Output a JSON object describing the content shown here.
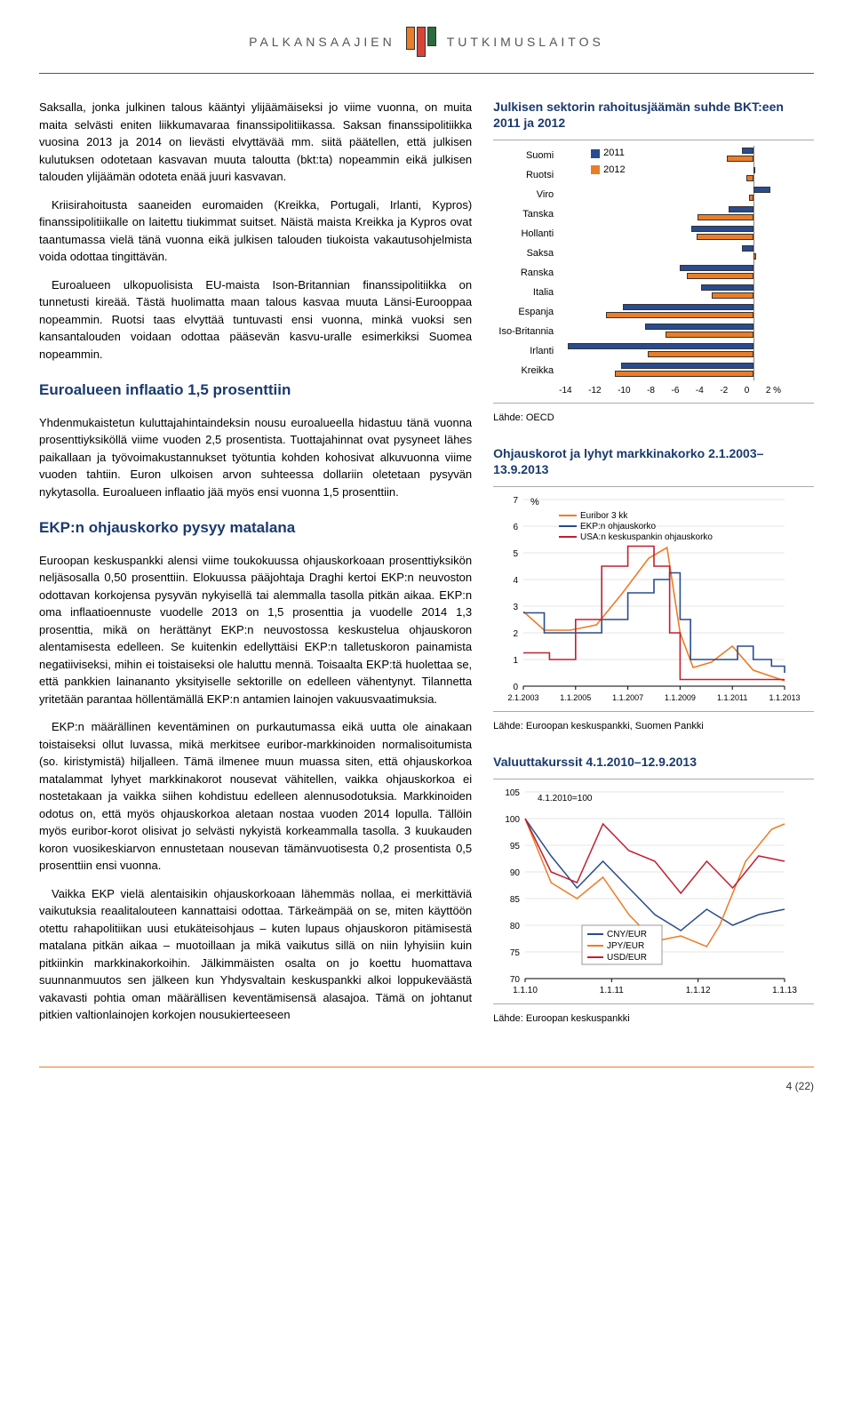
{
  "header": {
    "left": "PALKANSAAJIEN",
    "right": "TUTKIMUSLAITOS",
    "logo_colors": [
      "#ec7c26",
      "#d9443a",
      "#2a6b3f"
    ]
  },
  "body": {
    "p1": "Saksalla, jonka julkinen talous kääntyi ylijäämäiseksi jo viime vuonna, on muita maita selvästi eniten liikkumavaraa finanssipolitiikassa. Saksan finanssipolitiikka vuosina 2013 ja 2014 on lievästi elvyttävää mm. siitä päätellen, että julkisen kulutuksen odotetaan kasvavan muuta taloutta (bkt:ta) nopeammin eikä julkisen talouden ylijäämän odoteta enää juuri kasvavan.",
    "p2": "Kriisirahoitusta saaneiden euromaiden (Kreikka, Portugali, Irlanti, Kypros) finanssipolitiikalle on laitettu tiukimmat suitset. Näistä maista Kreikka ja Kypros ovat taantumassa vielä tänä vuonna eikä julkisen talouden tiukoista vakautusohjelmista voida odottaa tingittävän.",
    "p3": "Euroalueen ulkopuolisista EU-maista Ison-Britannian finanssipolitiikka on tunnetusti kireää. Tästä huolimatta maan talous kasvaa muuta Länsi-Eurooppaa nopeammin. Ruotsi taas elvyttää tuntuvasti ensi vuonna, minkä vuoksi sen kansantalouden voidaan odottaa pääsevän kasvu-uralle esimerkiksi Suomea nopeammin.",
    "h1": "Euroalueen inflaatio 1,5 prosenttiin",
    "p4": "Yhdenmukaistetun kuluttajahintaindeksin nousu euroalueella hidastuu tänä vuonna prosenttiyksiköllä viime vuoden 2,5 prosentista. Tuottajahinnat ovat pysyneet lähes paikallaan ja työvoimakustannukset työtuntia kohden kohosivat alkuvuonna viime vuoden tahtiin. Euron ulkoisen arvon suhteessa dollariin oletetaan pysyvän nykytasolla. Euroalueen inflaatio jää myös ensi vuonna 1,5 prosenttiin.",
    "h2": "EKP:n ohjauskorko pysyy matalana",
    "p5": "Euroopan keskuspankki alensi viime toukokuussa ohjauskorkoaan prosenttiyksikön neljäsosalla 0,50 prosenttiin. Elokuussa pääjohtaja Draghi kertoi EKP:n neuvoston odottavan korkojensa pysyvän nykyisellä tai alemmalla tasolla pitkän aikaa. EKP:n oma inflaatioennuste vuodelle 2013 on 1,5 prosenttia ja vuodelle 2014 1,3 prosenttia, mikä on herättänyt EKP:n neuvostossa keskustelua ohjauskoron alentamisesta edelleen. Se kuitenkin edellyttäisi EKP:n talletuskoron painamista negatiiviseksi, mihin ei toistaiseksi ole haluttu mennä. Toisaalta EKP:tä huolettaa se, että pankkien lainananto yksityiselle sektorille on edelleen vähentynyt. Tilannetta yritetään parantaa höllentämällä EKP:n antamien lainojen vakuusvaatimuksia.",
    "p6": "EKP:n määrällinen keventäminen on purkautumassa eikä uutta ole ainakaan toistaiseksi ollut luvassa, mikä merkitsee euribor-markkinoiden normalisoitumista (so. kiristymistä) hiljalleen. Tämä ilmenee muun muassa siten, että ohjauskorkoa matalammat lyhyet markkinakorot nousevat vähitellen, vaikka ohjauskorkoa ei nostetakaan ja vaikka siihen kohdistuu edelleen alennusodotuksia. Markkinoiden odotus on, että myös ohjauskorkoa aletaan nostaa vuoden 2014 lopulla. Tällöin myös euribor-korot olisivat jo selvästi nykyistä korkeammalla tasolla. 3 kuukauden koron vuosikeskiarvon ennustetaan nousevan tämänvuotisesta 0,2 prosentista 0,5 prosenttiin ensi vuonna.",
    "p7": "Vaikka EKP vielä alentaisikin ohjauskorkoaan lähemmäs nollaa, ei merkittäviä vaikutuksia reaalitalouteen kannattaisi odottaa. Tärkeämpää on se, miten käyttöön otettu rahapolitiikan uusi etukäteisohjaus – kuten lupaus ohjauskoron pitämisestä matalana pitkän aikaa – muotoillaan ja mikä vaikutus sillä on niin lyhyisiin kuin pitkiinkin markkinakorkoihin. Jälkimmäisten osalta on jo koettu huomattava suunnanmuutos sen jälkeen kun Yhdysvaltain keskuspankki alkoi loppukeväästä vakavasti pohtia oman määrällisen keventämisensä alasajoa. Tämä on johtanut pitkien valtionlainojen korkojen nousukierteeseen"
  },
  "chart1": {
    "title": "Julkisen sektorin rahoitusjäämän suhde BKT:een 2011 ja 2012",
    "legend": [
      "2011",
      "2012"
    ],
    "colors": {
      "2011": "#2a4b8d",
      "2012": "#ec7c26"
    },
    "xmin": -14,
    "xmax": 2,
    "countries": [
      {
        "name": "Suomi",
        "v2011": -0.8,
        "v2012": -1.9
      },
      {
        "name": "Ruotsi",
        "v2011": 0.0,
        "v2012": -0.5
      },
      {
        "name": "Viro",
        "v2011": 1.2,
        "v2012": -0.3
      },
      {
        "name": "Tanska",
        "v2011": -1.8,
        "v2012": -4.0
      },
      {
        "name": "Hollanti",
        "v2011": -4.5,
        "v2012": -4.1
      },
      {
        "name": "Saksa",
        "v2011": -0.8,
        "v2012": 0.2
      },
      {
        "name": "Ranska",
        "v2011": -5.3,
        "v2012": -4.8
      },
      {
        "name": "Italia",
        "v2011": -3.8,
        "v2012": -3.0
      },
      {
        "name": "Espanja",
        "v2011": -9.4,
        "v2012": -10.6
      },
      {
        "name": "Iso-Britannia",
        "v2011": -7.8,
        "v2012": -6.3
      },
      {
        "name": "Irlanti",
        "v2011": -13.4,
        "v2012": -7.6
      },
      {
        "name": "Kreikka",
        "v2011": -9.5,
        "v2012": -10.0
      }
    ],
    "xticks": [
      -14,
      -12,
      -10,
      -8,
      -6,
      -4,
      -2,
      0,
      "2 %"
    ],
    "source": "Lähde: OECD"
  },
  "chart2": {
    "title": "Ohjauskorot ja lyhyt markkinakorko 2.1.2003–13.9.2013",
    "ylabel": "%",
    "ymin": 0,
    "ymax": 7,
    "legend": [
      {
        "label": "Euribor 3 kk",
        "color": "#ec7c26"
      },
      {
        "label": "EKP:n ohjauskorko",
        "color": "#2a4b8d"
      },
      {
        "label": "USA:n keskuspankin ohjauskorko",
        "color": "#c02030"
      }
    ],
    "xticks": [
      "2.1.2003",
      "1.1.2005",
      "1.1.2007",
      "1.1.2009",
      "1.1.2011",
      "1.1.2013"
    ],
    "source": "Lähde: Euroopan keskuspankki, Suomen Pankki"
  },
  "chart3": {
    "title": "Valuuttakurssit 4.1.2010–12.9.2013",
    "note": "4.1.2010=100",
    "ymin": 70,
    "ymax": 105,
    "legend": [
      {
        "label": "CNY/EUR",
        "color": "#2a4b8d"
      },
      {
        "label": "JPY/EUR",
        "color": "#ec7c26"
      },
      {
        "label": "USD/EUR",
        "color": "#c02030"
      }
    ],
    "xticks": [
      "1.1.10",
      "1.1.11",
      "1.1.12",
      "1.1.13"
    ],
    "source": "Lähde: Euroopan keskuspankki"
  },
  "footer": "4 (22)"
}
